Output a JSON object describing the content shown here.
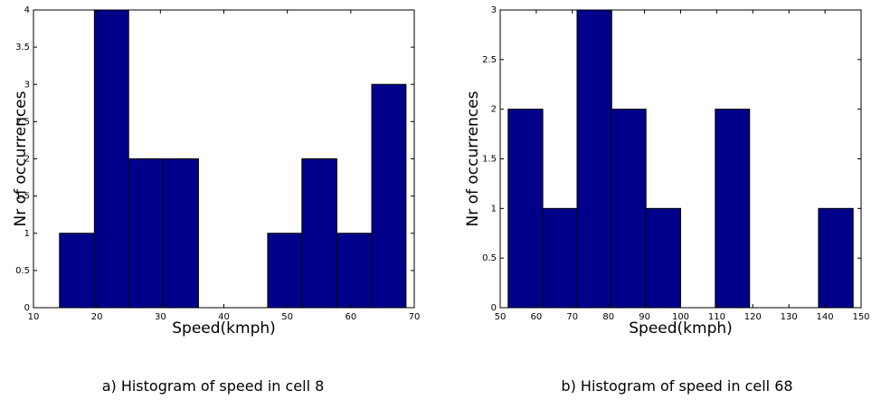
{
  "chart_data": [
    {
      "type": "bar",
      "histogram": true,
      "caption": "a) Histogram of speed in cell 8",
      "xlabel": "Speed(kmph)",
      "ylabel": "Nr of occurrences",
      "xlim": [
        10,
        70
      ],
      "ylim": [
        0,
        4
      ],
      "xticks": [
        "10",
        "20",
        "30",
        "40",
        "50",
        "60",
        "70"
      ],
      "yticks": [
        "0",
        "0.5",
        "1",
        "1.5",
        "2",
        "2.5",
        "3",
        "3.5",
        "4"
      ],
      "xtick_values": [
        10,
        20,
        30,
        40,
        50,
        60,
        70
      ],
      "ytick_values": [
        0,
        0.5,
        1,
        1.5,
        2,
        2.5,
        3,
        3.5,
        4
      ],
      "bins": [
        {
          "x0": 14.1,
          "x1": 19.6,
          "count": 1
        },
        {
          "x0": 19.6,
          "x1": 25.0,
          "count": 4
        },
        {
          "x0": 25.0,
          "x1": 30.5,
          "count": 2
        },
        {
          "x0": 30.5,
          "x1": 36.0,
          "count": 2
        },
        {
          "x0": 36.0,
          "x1": 41.4,
          "count": 0
        },
        {
          "x0": 41.4,
          "x1": 46.9,
          "count": 0
        },
        {
          "x0": 46.9,
          "x1": 52.3,
          "count": 1
        },
        {
          "x0": 52.3,
          "x1": 57.8,
          "count": 2
        },
        {
          "x0": 57.8,
          "x1": 63.3,
          "count": 1
        },
        {
          "x0": 63.3,
          "x1": 68.7,
          "count": 3
        }
      ],
      "bar_color": "#00008b"
    },
    {
      "type": "bar",
      "histogram": true,
      "caption": "b) Histogram of speed in cell 68",
      "xlabel": "Speed(kmph)",
      "ylabel": "Nr of occurrences",
      "xlim": [
        50,
        150
      ],
      "ylim": [
        0,
        3
      ],
      "xticks": [
        "50",
        "60",
        "70",
        "80",
        "90",
        "100",
        "110",
        "120",
        "130",
        "140",
        "150"
      ],
      "yticks": [
        "0",
        "0.5",
        "1",
        "1.5",
        "2",
        "2.5",
        "3"
      ],
      "xtick_values": [
        50,
        60,
        70,
        80,
        90,
        100,
        110,
        120,
        130,
        140,
        150
      ],
      "ytick_values": [
        0,
        0.5,
        1,
        1.5,
        2,
        2.5,
        3
      ],
      "bins": [
        {
          "x0": 52.2,
          "x1": 61.8,
          "count": 2
        },
        {
          "x0": 61.8,
          "x1": 71.3,
          "count": 1
        },
        {
          "x0": 71.3,
          "x1": 80.9,
          "count": 3
        },
        {
          "x0": 80.9,
          "x1": 90.4,
          "count": 2
        },
        {
          "x0": 90.4,
          "x1": 100.0,
          "count": 1
        },
        {
          "x0": 100.0,
          "x1": 109.6,
          "count": 0
        },
        {
          "x0": 109.6,
          "x1": 119.1,
          "count": 2
        },
        {
          "x0": 119.1,
          "x1": 128.7,
          "count": 0
        },
        {
          "x0": 128.7,
          "x1": 138.2,
          "count": 0
        },
        {
          "x0": 138.2,
          "x1": 147.8,
          "count": 1
        }
      ],
      "bar_color": "#00008b"
    }
  ]
}
